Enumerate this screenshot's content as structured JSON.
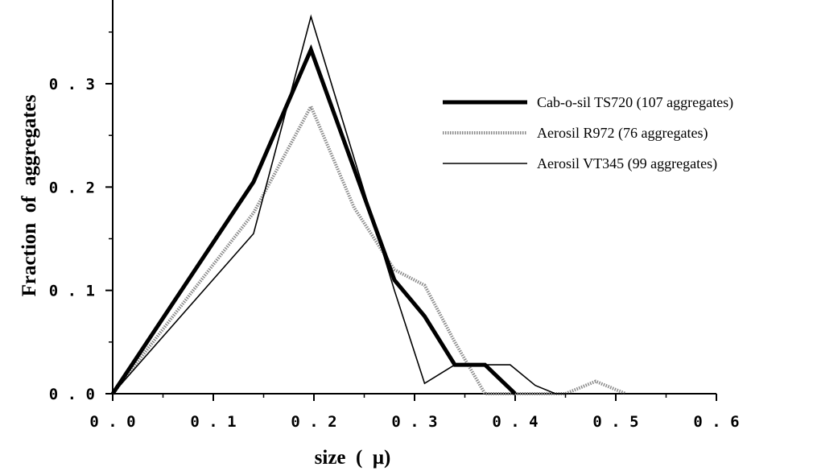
{
  "chart_data": {
    "type": "line",
    "title": "",
    "xlabel": "size  (  μ)",
    "ylabel": "Fraction  of  aggregates",
    "xlim": [
      0.0,
      0.6
    ],
    "ylim": [
      0.0,
      0.38
    ],
    "x_ticks": [
      "0.0",
      "0.1",
      "0.2",
      "0.3",
      "0.4",
      "0.5",
      "0.6"
    ],
    "y_ticks": [
      "0.0",
      "0.1",
      "0.2",
      "0.3"
    ],
    "grid": false,
    "legend_position": "top-right",
    "series": [
      {
        "name": "Cab-o-sil TS720 (107 aggregates)",
        "style": "thick-solid",
        "color": "#000000",
        "x": [
          0.0,
          0.14,
          0.197,
          0.28,
          0.31,
          0.34,
          0.37,
          0.4
        ],
        "y": [
          0.0,
          0.205,
          0.333,
          0.11,
          0.075,
          0.028,
          0.028,
          0.0
        ]
      },
      {
        "name": "Aerosil R972  (76 aggregates)",
        "style": "dotted-gray",
        "color": "#888888",
        "x": [
          0.0,
          0.14,
          0.197,
          0.24,
          0.28,
          0.31,
          0.34,
          0.37,
          0.45,
          0.48,
          0.51
        ],
        "y": [
          0.0,
          0.175,
          0.278,
          0.18,
          0.12,
          0.105,
          0.05,
          0.0,
          0.0,
          0.012,
          0.0
        ]
      },
      {
        "name": "Aerosil VT345  (99 aggregates)",
        "style": "thin-solid",
        "color": "#000000",
        "x": [
          0.0,
          0.14,
          0.197,
          0.28,
          0.31,
          0.34,
          0.395,
          0.42,
          0.44,
          0.575
        ],
        "y": [
          0.0,
          0.155,
          0.365,
          0.1,
          0.01,
          0.028,
          0.028,
          0.008,
          0.0,
          0.0
        ]
      }
    ]
  }
}
